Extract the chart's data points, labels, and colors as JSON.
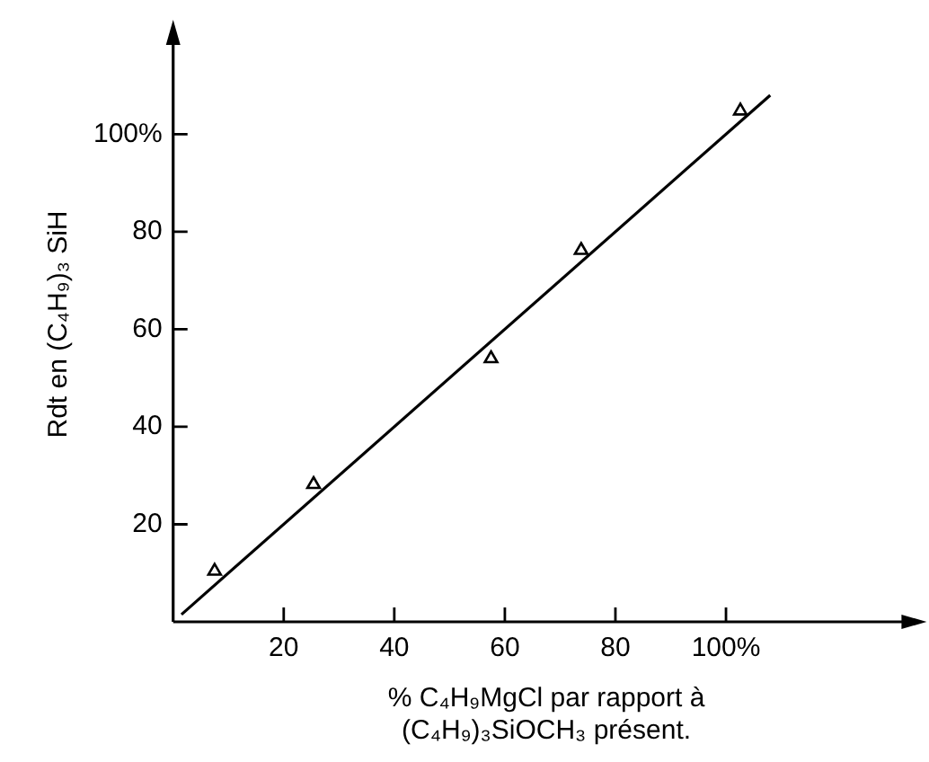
{
  "chart_data": {
    "type": "scatter",
    "xlabel": "% C₄H₉MgCl par rapport à (C₄H₉)₃SiOCH₃ présent.",
    "ylabel": "Rdt en (C₄H₉)₃ SiH",
    "xlim": [
      0,
      135
    ],
    "ylim": [
      0,
      122
    ],
    "xticks": [
      20,
      40,
      60,
      80,
      {
        "value": 100,
        "label": "100%"
      }
    ],
    "yticks": [
      20,
      40,
      60,
      80,
      {
        "value": 100,
        "label": "100%"
      }
    ],
    "grid": false,
    "legend": false,
    "series": [
      {
        "marker": "triangle",
        "color": "#000000",
        "x": [
          7.5,
          25.4,
          57.5,
          73.8,
          102.6
        ],
        "values": [
          10.4,
          28.2,
          54,
          76.2,
          104.8
        ]
      },
      {
        "type": "line",
        "marker": "none",
        "color": "#000000",
        "x": [
          1.5,
          108
        ],
        "values": [
          1.5,
          108
        ]
      }
    ]
  }
}
